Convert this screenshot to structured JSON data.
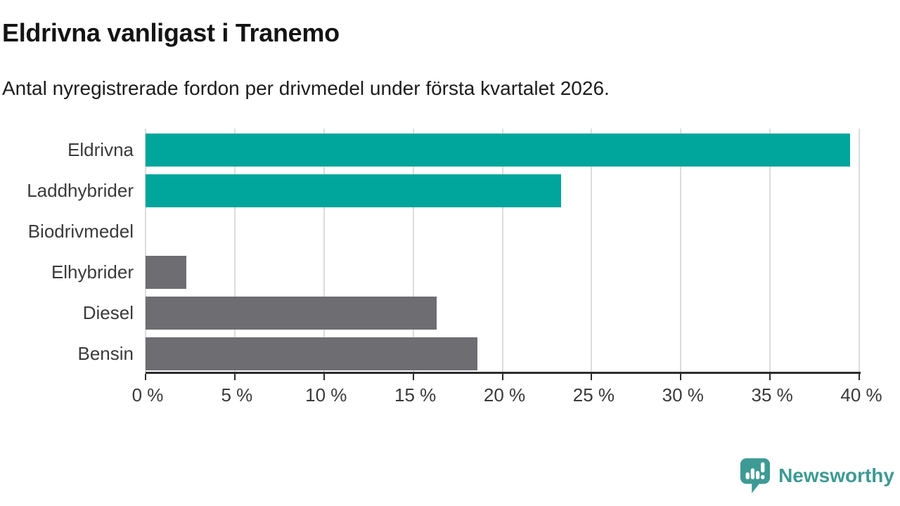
{
  "chart": {
    "title": "Eldrivna vanligast i Tranemo",
    "subtitle": "Antal nyregistrerade fordon per drivmedel under första kvartalet 2026."
  },
  "chart_data": {
    "type": "bar",
    "orientation": "horizontal",
    "title": "Eldrivna vanligast i Tranemo",
    "subtitle": "Antal nyregistrerade fordon per drivmedel under första kvartalet 2026.",
    "categories": [
      "Eldrivna",
      "Laddhybrider",
      "Biodrivmedel",
      "Elhybrider",
      "Diesel",
      "Bensin"
    ],
    "values": [
      39.5,
      23.3,
      0,
      2.3,
      16.3,
      18.6
    ],
    "unit": "%",
    "bar_colors": [
      "#00a69b",
      "#00a69b",
      "#00a69b",
      "#6d6d72",
      "#6d6d72",
      "#6d6d72"
    ],
    "xlim": [
      0,
      40
    ],
    "x_ticks": [
      0,
      5,
      10,
      15,
      20,
      25,
      30,
      35,
      40
    ],
    "x_tick_labels": [
      "0 %",
      "5 %",
      "10 %",
      "15 %",
      "20 %",
      "25 %",
      "30 %",
      "35 %",
      "40 %"
    ],
    "grid": true,
    "legend": false,
    "colors": {
      "accent_teal": "#00a69b",
      "neutral_gray": "#6d6d72",
      "gridline": "#dcdcdc",
      "axis": "#2d2d2d",
      "text": "#3a3a3a"
    }
  },
  "footer": {
    "brand": "Newsworthy",
    "brand_color": "#3e9a94"
  }
}
